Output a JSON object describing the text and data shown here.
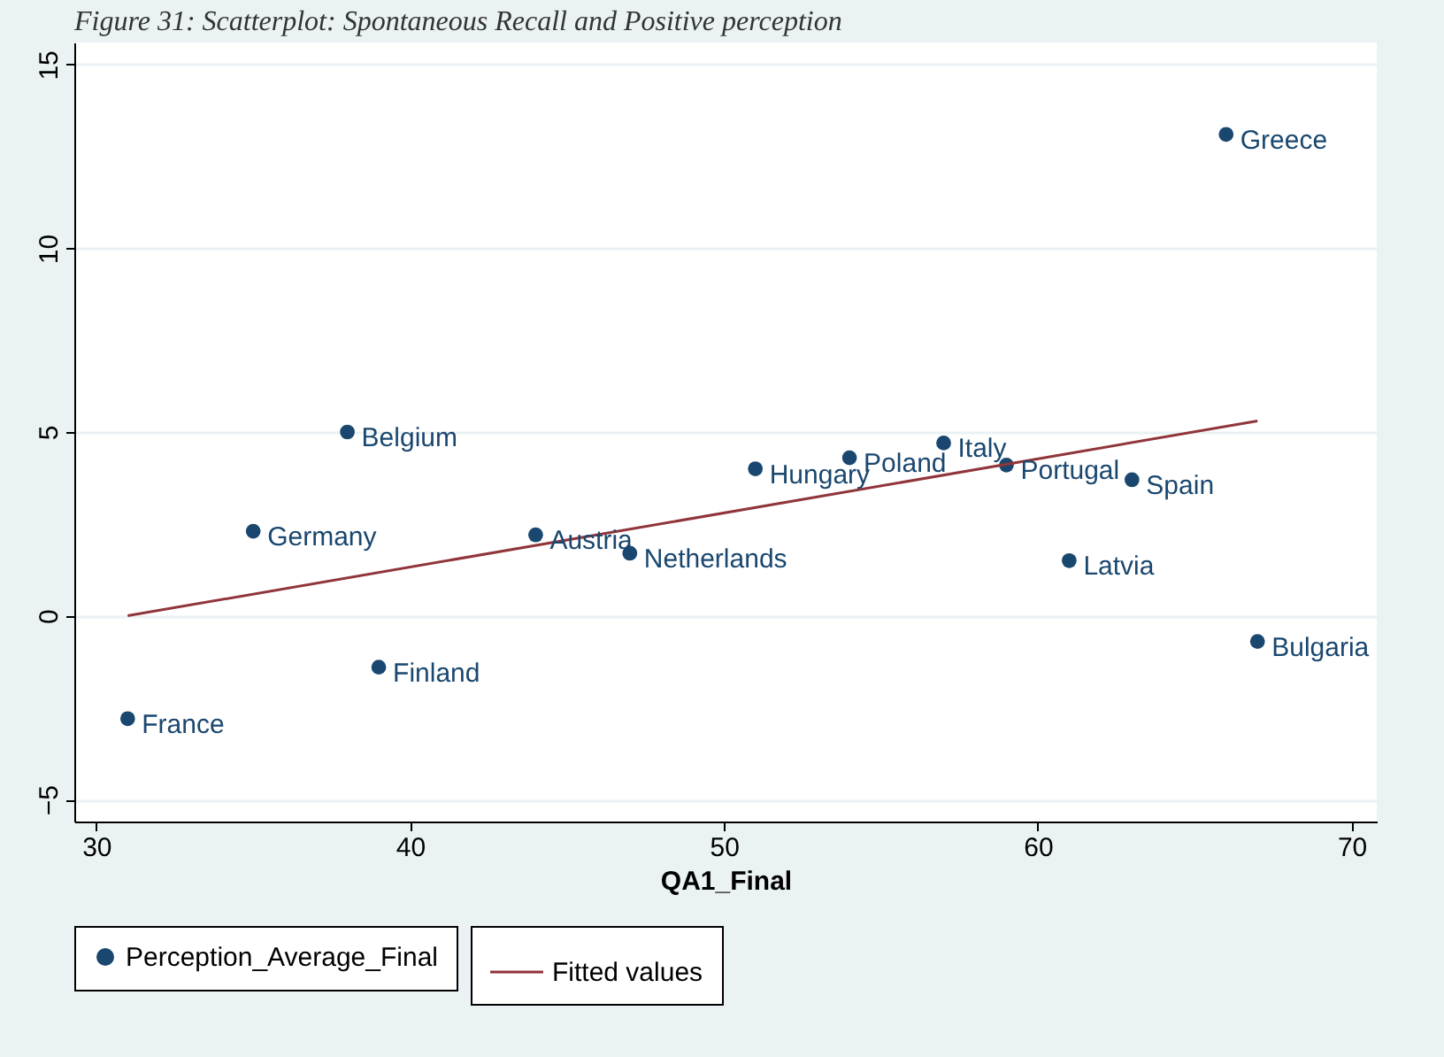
{
  "chart_data": {
    "type": "scatter",
    "title": "Figure 31: Scatterplot: Spontaneous Recall and Positive perception",
    "xlabel": "QA1_Final",
    "xlim": [
      29.3,
      70.8
    ],
    "xticks": [
      30,
      40,
      50,
      60,
      70
    ],
    "ylim": [
      -5.6,
      15.6
    ],
    "yticks": [
      -5,
      0,
      5,
      10,
      15
    ],
    "grid": "y",
    "legend": "bottom",
    "series": [
      {
        "name": "Perception_Average_Final",
        "marker": "circle",
        "color": "#1a476f",
        "x": [
          31,
          35,
          38,
          39,
          44,
          47,
          51,
          54,
          57,
          59,
          61,
          63,
          66,
          67
        ],
        "values": [
          -2.8,
          2.3,
          5.0,
          -1.4,
          2.2,
          1.7,
          4.0,
          4.3,
          4.7,
          4.1,
          1.5,
          3.7,
          13.1,
          -0.7
        ]
      },
      {
        "name": "Fitted values",
        "type": "line",
        "line_style": "solid",
        "marker": "none",
        "color": "#90353b",
        "x": [
          31,
          67
        ],
        "values": [
          0.0,
          5.3
        ]
      }
    ],
    "annotations": [
      {
        "text": "France",
        "x": 31,
        "y": -2.8
      },
      {
        "text": "Germany",
        "x": 35,
        "y": 2.3
      },
      {
        "text": "Belgium",
        "x": 38,
        "y": 5.0
      },
      {
        "text": "Finland",
        "x": 39,
        "y": -1.4
      },
      {
        "text": "Austria",
        "x": 44,
        "y": 2.2
      },
      {
        "text": "Netherlands",
        "x": 47,
        "y": 1.7
      },
      {
        "text": "Hungary",
        "x": 51,
        "y": 4.0
      },
      {
        "text": "Poland",
        "x": 54,
        "y": 4.3
      },
      {
        "text": "Italy",
        "x": 57,
        "y": 4.7
      },
      {
        "text": "Portugal",
        "x": 59,
        "y": 4.1
      },
      {
        "text": "Latvia",
        "x": 61,
        "y": 1.5
      },
      {
        "text": "Spain",
        "x": 63,
        "y": 3.7
      },
      {
        "text": "Greece",
        "x": 66,
        "y": 13.1
      },
      {
        "text": "Bulgaria",
        "x": 67,
        "y": -0.7
      }
    ]
  }
}
